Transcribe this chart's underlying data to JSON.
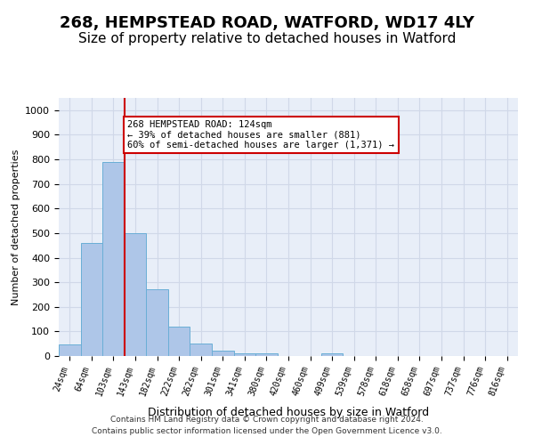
{
  "title1": "268, HEMPSTEAD ROAD, WATFORD, WD17 4LY",
  "title2": "Size of property relative to detached houses in Watford",
  "xlabel": "Distribution of detached houses by size in Watford",
  "ylabel": "Number of detached properties",
  "bin_labels": [
    "24sqm",
    "64sqm",
    "103sqm",
    "143sqm",
    "182sqm",
    "222sqm",
    "262sqm",
    "301sqm",
    "341sqm",
    "380sqm",
    "420sqm",
    "460sqm",
    "499sqm",
    "539sqm",
    "578sqm",
    "618sqm",
    "658sqm",
    "697sqm",
    "737sqm",
    "776sqm",
    "816sqm"
  ],
  "bar_values": [
    46,
    460,
    790,
    500,
    270,
    120,
    52,
    20,
    10,
    12,
    0,
    0,
    10,
    0,
    0,
    0,
    0,
    0,
    0,
    0,
    0
  ],
  "bar_color": "#aec6e8",
  "bar_edge_color": "#6aaed6",
  "vline_x": 2.5,
  "vline_color": "#cc0000",
  "ylim": [
    0,
    1050
  ],
  "yticks": [
    0,
    100,
    200,
    300,
    400,
    500,
    600,
    700,
    800,
    900,
    1000
  ],
  "annotation_text": "268 HEMPSTEAD ROAD: 124sqm\n← 39% of detached houses are smaller (881)\n60% of semi-detached houses are larger (1,371) →",
  "annotation_box_color": "#ffffff",
  "annotation_box_edge": "#cc0000",
  "footer1": "Contains HM Land Registry data © Crown copyright and database right 2024.",
  "footer2": "Contains public sector information licensed under the Open Government Licence v3.0.",
  "grid_color": "#d0d8e8",
  "background_color": "#e8eef8",
  "fig_background": "#ffffff",
  "title1_fontsize": 13,
  "title2_fontsize": 11
}
